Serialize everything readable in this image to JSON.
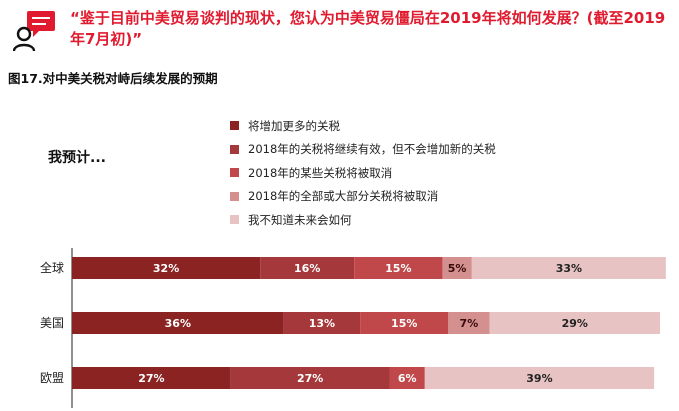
{
  "header": {
    "question": "“鉴于目前中美贸易谈判的现状，您认为中美贸易僵局在2019年将如何发展？(截至2019年7月初)”",
    "figure_title": "图17.对中美关税对峙后续发展的预期",
    "prompt": "我预计..."
  },
  "legend": {
    "items": [
      {
        "label": "将增加更多的关税",
        "color": "#8b2323"
      },
      {
        "label": "2018年的关税将继续有效，但不会增加新的关税",
        "color": "#a5383a"
      },
      {
        "label": "2018年的某些关税将被取消",
        "color": "#c1484a"
      },
      {
        "label": "2018年的全部或大部分关税将被取消",
        "color": "#d48f8f"
      },
      {
        "label": "我不知道未来会如何",
        "color": "#e8c3c3"
      }
    ]
  },
  "chart_data": {
    "type": "bar",
    "orientation": "horizontal",
    "stacked": true,
    "categories": [
      "全球",
      "美国",
      "欧盟"
    ],
    "series": [
      {
        "name": "将增加更多的关税",
        "color": "#8b2323",
        "values": [
          32,
          36,
          27
        ]
      },
      {
        "name": "2018年的关税将继续有效，但不会增加新的关税",
        "color": "#a5383a",
        "values": [
          16,
          13,
          27
        ]
      },
      {
        "name": "2018年的某些关税将被取消",
        "color": "#c1484a",
        "values": [
          15,
          15,
          6
        ]
      },
      {
        "name": "2018年的全部或大部分关税将被取消",
        "color": "#d48f8f",
        "values": [
          5,
          7,
          0
        ]
      },
      {
        "name": "我不知道未来会如何",
        "color": "#e8c3c3",
        "values": [
          33,
          29,
          39
        ]
      }
    ],
    "data_labels": [
      [
        "32%",
        "16%",
        "15%",
        "5%",
        "33%"
      ],
      [
        "36%",
        "13%",
        "15%",
        "7%",
        "29%"
      ],
      [
        "27%",
        "27%",
        "6%",
        "",
        "39%"
      ]
    ],
    "title": "图17.对中美关税对峙后续发展的预期",
    "xlabel": "",
    "ylabel": "",
    "xlim": [
      0,
      100
    ]
  }
}
